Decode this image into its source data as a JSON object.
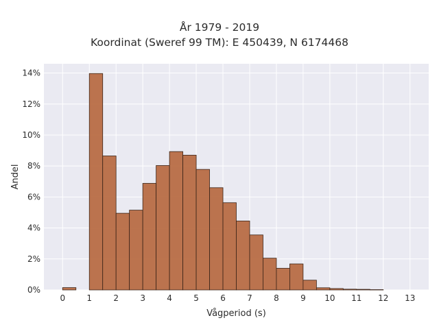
{
  "chart_data": {
    "type": "bar",
    "title_lines": [
      "År 1979 - 2019",
      "Koordinat (Sweref 99 TM): E 450439, N 6174468"
    ],
    "xlabel": "Vågperiod (s)",
    "ylabel": "Andel",
    "xlim": [
      -0.7,
      13.7
    ],
    "ylim": [
      0,
      14.6
    ],
    "x_ticks": [
      0,
      1,
      2,
      3,
      4,
      5,
      6,
      7,
      8,
      9,
      10,
      11,
      12,
      13
    ],
    "y_ticks": [
      0,
      2,
      4,
      6,
      8,
      10,
      12,
      14
    ],
    "y_tick_labels": [
      "0%",
      "2%",
      "4%",
      "6%",
      "8%",
      "10%",
      "12%",
      "14%"
    ],
    "bin_width": 0.5,
    "bins": [
      {
        "x": 0.0,
        "value": 0.15
      },
      {
        "x": 1.0,
        "value": 13.97
      },
      {
        "x": 1.5,
        "value": 8.65
      },
      {
        "x": 2.0,
        "value": 4.95
      },
      {
        "x": 2.5,
        "value": 5.15
      },
      {
        "x": 3.0,
        "value": 6.88
      },
      {
        "x": 3.5,
        "value": 8.03
      },
      {
        "x": 4.0,
        "value": 8.93
      },
      {
        "x": 4.5,
        "value": 8.7
      },
      {
        "x": 5.0,
        "value": 7.78
      },
      {
        "x": 5.5,
        "value": 6.6
      },
      {
        "x": 6.0,
        "value": 5.63
      },
      {
        "x": 6.5,
        "value": 4.45
      },
      {
        "x": 7.0,
        "value": 3.55
      },
      {
        "x": 7.5,
        "value": 2.05
      },
      {
        "x": 8.0,
        "value": 1.4
      },
      {
        "x": 8.5,
        "value": 1.68
      },
      {
        "x": 9.0,
        "value": 0.63
      },
      {
        "x": 9.5,
        "value": 0.14
      },
      {
        "x": 10.0,
        "value": 0.09
      },
      {
        "x": 10.5,
        "value": 0.05
      },
      {
        "x": 11.0,
        "value": 0.04
      },
      {
        "x": 11.5,
        "value": 0.02
      }
    ],
    "bar_color": "#b86d45",
    "bar_edge_color": "#3a2418",
    "plot_background": "#eaeaf2",
    "grid": true,
    "grid_color": "#ffffff",
    "legend": "none"
  }
}
